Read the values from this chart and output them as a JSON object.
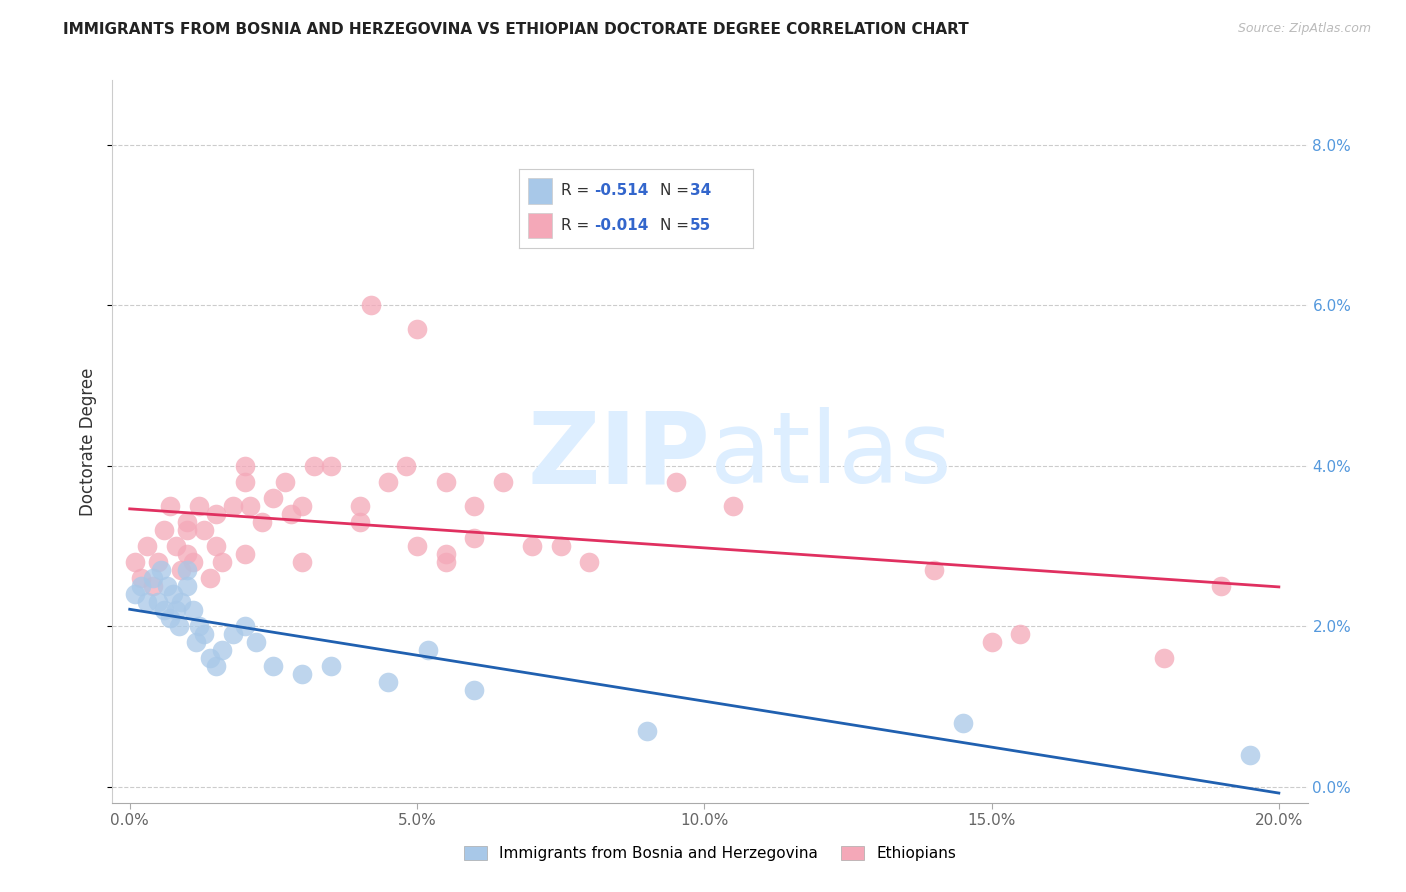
{
  "title": "IMMIGRANTS FROM BOSNIA AND HERZEGOVINA VS ETHIOPIAN DOCTORATE DEGREE CORRELATION CHART",
  "source": "Source: ZipAtlas.com",
  "ylabel": "Doctorate Degree",
  "xlabel_ticks": [
    "0.0%",
    "5.0%",
    "10.0%",
    "15.0%",
    "20.0%"
  ],
  "xlabel_vals": [
    0.0,
    5.0,
    10.0,
    15.0,
    20.0
  ],
  "ylabel_ticks": [
    "0.0%",
    "2.0%",
    "4.0%",
    "6.0%",
    "8.0%"
  ],
  "ylabel_vals": [
    0.0,
    2.0,
    4.0,
    6.0,
    8.0
  ],
  "xlim": [
    -0.3,
    20.5
  ],
  "ylim": [
    -0.2,
    8.8
  ],
  "legend_bosnia": "Immigrants from Bosnia and Herzegovina",
  "legend_ethiopians": "Ethiopians",
  "r_bosnia": "-0.514",
  "n_bosnia": "34",
  "r_ethiopian": "-0.014",
  "n_ethiopian": "55",
  "color_bosnia": "#a8c8e8",
  "color_ethiopian": "#f4a8b8",
  "line_color_bosnia": "#2060b0",
  "line_color_ethiopian": "#e03060",
  "legend_text_color": "#3366cc",
  "background_color": "#ffffff",
  "watermark_color": "#ddeeff",
  "bosnia_x": [
    0.1,
    0.2,
    0.3,
    0.4,
    0.5,
    0.55,
    0.6,
    0.65,
    0.7,
    0.75,
    0.8,
    0.85,
    0.9,
    1.0,
    1.0,
    1.1,
    1.15,
    1.2,
    1.3,
    1.4,
    1.5,
    1.6,
    1.8,
    2.0,
    2.2,
    2.5,
    3.0,
    3.5,
    4.5,
    5.2,
    6.0,
    9.0,
    14.5,
    19.5
  ],
  "bosnia_y": [
    2.4,
    2.5,
    2.3,
    2.6,
    2.3,
    2.7,
    2.2,
    2.5,
    2.1,
    2.4,
    2.2,
    2.0,
    2.3,
    2.5,
    2.7,
    2.2,
    1.8,
    2.0,
    1.9,
    1.6,
    1.5,
    1.7,
    1.9,
    2.0,
    1.8,
    1.5,
    1.4,
    1.5,
    1.3,
    1.7,
    1.2,
    0.7,
    0.8,
    0.4
  ],
  "ethiopian_x": [
    0.1,
    0.2,
    0.3,
    0.4,
    0.5,
    0.6,
    0.7,
    0.8,
    0.9,
    1.0,
    1.0,
    1.1,
    1.2,
    1.3,
    1.4,
    1.5,
    1.5,
    1.6,
    1.8,
    2.0,
    2.0,
    2.1,
    2.3,
    2.5,
    2.7,
    2.8,
    3.0,
    3.2,
    3.5,
    4.0,
    4.2,
    4.5,
    4.8,
    5.0,
    5.5,
    5.5,
    6.0,
    6.5,
    7.0,
    8.0,
    9.5,
    10.5,
    14.0,
    15.5,
    18.0,
    1.0,
    2.0,
    3.0,
    4.0,
    5.0,
    5.5,
    6.0,
    7.5,
    15.0,
    19.0
  ],
  "ethiopian_y": [
    2.8,
    2.6,
    3.0,
    2.5,
    2.8,
    3.2,
    3.5,
    3.0,
    2.7,
    2.9,
    3.3,
    2.8,
    3.5,
    3.2,
    2.6,
    3.0,
    3.4,
    2.8,
    3.5,
    4.0,
    3.8,
    3.5,
    3.3,
    3.6,
    3.8,
    3.4,
    3.5,
    4.0,
    4.0,
    3.5,
    6.0,
    3.8,
    4.0,
    5.7,
    2.8,
    3.8,
    3.5,
    3.8,
    3.0,
    2.8,
    3.8,
    3.5,
    2.7,
    1.9,
    1.6,
    3.2,
    2.9,
    2.8,
    3.3,
    3.0,
    2.9,
    3.1,
    3.0,
    1.8,
    2.5
  ]
}
